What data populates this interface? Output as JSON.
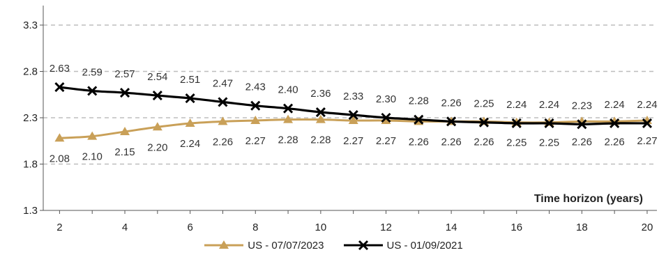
{
  "chart_data": {
    "type": "line",
    "xlabel": "Time horizon (years)",
    "ylabel": "",
    "xlim": [
      1.5,
      20.3
    ],
    "ylim": [
      1.3,
      3.3
    ],
    "x_ticks": [
      2,
      4,
      6,
      8,
      10,
      12,
      14,
      16,
      18,
      20
    ],
    "y_ticks": [
      1.3,
      1.8,
      2.3,
      2.8,
      3.3
    ],
    "grid": "horizontal dashed",
    "legend_position": "bottom",
    "x": [
      2,
      3,
      4,
      5,
      6,
      7,
      8,
      9,
      10,
      11,
      12,
      13,
      14,
      15,
      16,
      17,
      18,
      19,
      20
    ],
    "series": [
      {
        "name": "US - 07/07/2023",
        "color": "#c9a058",
        "marker": "triangle",
        "values": [
          2.08,
          2.1,
          2.15,
          2.2,
          2.24,
          2.26,
          2.27,
          2.28,
          2.28,
          2.27,
          2.27,
          2.26,
          2.26,
          2.26,
          2.25,
          2.25,
          2.26,
          2.26,
          2.27
        ],
        "labels": [
          "2.08",
          "2.10",
          "2.15",
          "2.20",
          "2.24",
          "2.26",
          "2.27",
          "2.28",
          "2.28",
          "2.27",
          "2.27",
          "2.26",
          "2.26",
          "2.26",
          "2.25",
          "2.25",
          "2.26",
          "2.26",
          "2.27"
        ]
      },
      {
        "name": "US - 01/09/2021",
        "color": "#000000",
        "marker": "x",
        "values": [
          2.63,
          2.59,
          2.57,
          2.54,
          2.51,
          2.47,
          2.43,
          2.4,
          2.36,
          2.33,
          2.3,
          2.28,
          2.26,
          2.25,
          2.24,
          2.24,
          2.23,
          2.24,
          2.24
        ],
        "labels": [
          "2.63",
          "2.59",
          "2.57",
          "2.54",
          "2.51",
          "2.47",
          "2.43",
          "2.40",
          "2.36",
          "2.33",
          "2.30",
          "2.28",
          "2.26",
          "2.25",
          "2.24",
          "2.24",
          "2.23",
          "2.24",
          "2.24"
        ]
      }
    ]
  }
}
